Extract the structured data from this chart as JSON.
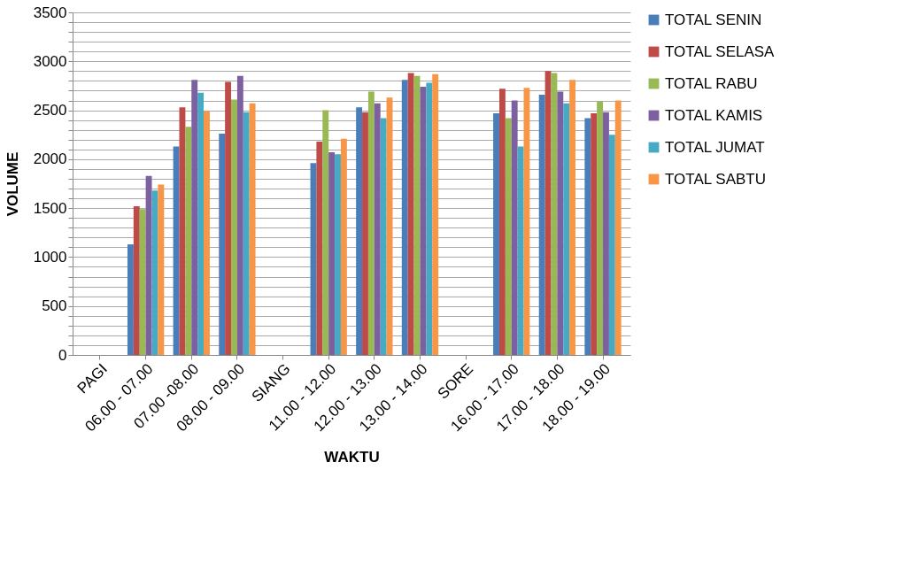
{
  "chart_data": {
    "type": "bar",
    "xlabel": "WAKTU",
    "ylabel": "VOLUME",
    "categories": [
      "PAGI",
      "06.00 - 07.00",
      "07.00 -08.00",
      "08.00 - 09.00",
      "SIANG",
      "11.00 - 12.00",
      "12.00 - 13.00",
      "13.00 - 14.00",
      "SORE",
      "16.00 - 17.00",
      "17.00 - 18.00",
      "18.00 - 19.00"
    ],
    "series": [
      {
        "name": "TOTAL SENIN",
        "color": "#4a7ebb",
        "values": [
          null,
          1130,
          2130,
          2260,
          null,
          1960,
          2530,
          2810,
          null,
          2470,
          2660,
          2420
        ]
      },
      {
        "name": "TOTAL SELASA",
        "color": "#be4b48",
        "values": [
          null,
          1520,
          2530,
          2790,
          null,
          2180,
          2480,
          2880,
          null,
          2720,
          2900,
          2470
        ]
      },
      {
        "name": "TOTAL RABU",
        "color": "#98b954",
        "values": [
          null,
          1490,
          2330,
          2610,
          null,
          2500,
          2690,
          2850,
          null,
          2420,
          2880,
          2590
        ]
      },
      {
        "name": "TOTAL KAMIS",
        "color": "#7d60a0",
        "values": [
          null,
          1830,
          2810,
          2850,
          null,
          2070,
          2570,
          2740,
          null,
          2600,
          2690,
          2480
        ]
      },
      {
        "name": "TOTAL JUMAT",
        "color": "#46aac5",
        "values": [
          null,
          1680,
          2680,
          2480,
          null,
          2050,
          2420,
          2780,
          null,
          2130,
          2570,
          2250
        ]
      },
      {
        "name": "TOTAL SABTU",
        "color": "#f79646",
        "values": [
          null,
          1740,
          2490,
          2570,
          null,
          2210,
          2630,
          2870,
          null,
          2730,
          2810,
          2600
        ]
      }
    ],
    "ylim": [
      0,
      3500
    ],
    "yticks": [
      0,
      {
        "value": 100,
        "label": null
      },
      {
        "value": 200,
        "label": null
      },
      {
        "value": 300,
        "label": null
      },
      {
        "value": 400,
        "label": null
      },
      500,
      {
        "value": 600,
        "label": null
      },
      {
        "value": 700,
        "label": null
      },
      {
        "value": 800,
        "label": null
      },
      {
        "value": 900,
        "label": null
      },
      1000,
      {
        "value": 1100,
        "label": null
      },
      {
        "value": 1200,
        "label": null
      },
      {
        "value": 1300,
        "label": null
      },
      {
        "value": 1400,
        "label": null
      },
      1500,
      {
        "value": 1600,
        "label": null
      },
      {
        "value": 1700,
        "label": null
      },
      {
        "value": 1800,
        "label": null
      },
      {
        "value": 1900,
        "label": null
      },
      2000,
      {
        "value": 2100,
        "label": null
      },
      {
        "value": 2200,
        "label": null
      },
      {
        "value": 2300,
        "label": null
      },
      {
        "value": 2400,
        "label": null
      },
      2500,
      {
        "value": 2600,
        "label": null
      },
      {
        "value": 2700,
        "label": null
      },
      {
        "value": 2800,
        "label": null
      },
      {
        "value": 2900,
        "label": null
      },
      3000,
      {
        "value": 3100,
        "label": null
      },
      {
        "value": 3200,
        "label": null
      },
      {
        "value": 3300,
        "label": null
      },
      {
        "value": 3400,
        "label": null
      },
      3500
    ],
    "grid": "y",
    "legend": "right"
  }
}
